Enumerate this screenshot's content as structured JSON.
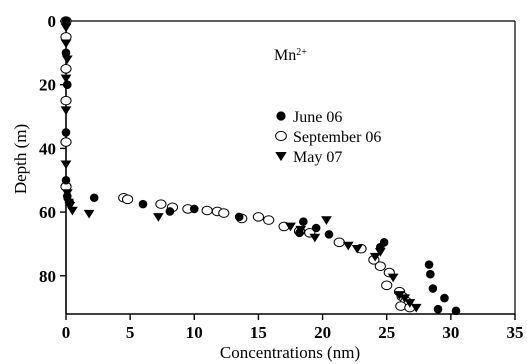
{
  "chart_data": {
    "type": "scatter",
    "title": "",
    "annotation": {
      "base": "Mn",
      "sup": "2+"
    },
    "xlabel": "Concentrations (nm)",
    "ylabel": "Depth (m)",
    "xlim": [
      0,
      35
    ],
    "ylim": [
      0,
      92
    ],
    "y_inverted": true,
    "x_axis_position": "bottom",
    "y_axis_position": "left",
    "xticks": [
      0,
      5,
      10,
      15,
      20,
      25,
      30,
      35
    ],
    "yticks": [
      0,
      20,
      40,
      60,
      80
    ],
    "grid": false,
    "legend_position": "center-right",
    "series": [
      {
        "name": "June 06",
        "marker": "filled-circle",
        "color": "#000000",
        "points": [
          [
            0.0,
            0
          ],
          [
            0.0,
            10
          ],
          [
            0.1,
            20
          ],
          [
            0.0,
            35
          ],
          [
            0.0,
            50
          ],
          [
            0.1,
            55
          ],
          [
            0.3,
            57
          ],
          [
            2.2,
            55.5
          ],
          [
            6.0,
            57.5
          ],
          [
            8.1,
            59.8
          ],
          [
            10.0,
            59
          ],
          [
            13.5,
            61.5
          ],
          [
            18.2,
            66.5
          ],
          [
            18.5,
            63
          ],
          [
            19.5,
            65
          ],
          [
            20.5,
            67
          ],
          [
            24.5,
            71
          ],
          [
            24.8,
            69.5
          ],
          [
            28.3,
            76.5
          ],
          [
            28.4,
            79.5
          ],
          [
            28.6,
            84
          ],
          [
            29.0,
            90.5
          ],
          [
            29.5,
            87
          ],
          [
            30.4,
            91
          ]
        ]
      },
      {
        "name": "September 06",
        "marker": "open-circle",
        "color": "#000000",
        "points": [
          [
            0.0,
            0
          ],
          [
            0.0,
            5
          ],
          [
            0.0,
            15
          ],
          [
            0.0,
            25
          ],
          [
            0.0,
            38
          ],
          [
            0.0,
            52
          ],
          [
            4.5,
            55.5
          ],
          [
            4.8,
            56
          ],
          [
            7.4,
            57.5
          ],
          [
            8.3,
            58.5
          ],
          [
            9.5,
            59
          ],
          [
            11.0,
            59.5
          ],
          [
            11.8,
            59.8
          ],
          [
            12.3,
            60.3
          ],
          [
            13.7,
            62
          ],
          [
            15.0,
            61.5
          ],
          [
            15.8,
            62.5
          ],
          [
            17.0,
            64.5
          ],
          [
            18.2,
            66
          ],
          [
            19.0,
            66.5
          ],
          [
            21.3,
            69.5
          ],
          [
            23.0,
            71.5
          ],
          [
            24.0,
            75
          ],
          [
            24.5,
            77
          ],
          [
            25.2,
            79
          ],
          [
            25.0,
            83
          ],
          [
            26.0,
            85
          ],
          [
            26.2,
            86.5
          ],
          [
            26.5,
            88
          ],
          [
            26.1,
            89.5
          ],
          [
            26.8,
            90
          ]
        ]
      },
      {
        "name": "May 07",
        "marker": "filled-triangle-down",
        "color": "#000000",
        "points": [
          [
            0.0,
            2
          ],
          [
            0.0,
            7
          ],
          [
            0.1,
            12
          ],
          [
            0.0,
            18
          ],
          [
            0.0,
            28
          ],
          [
            0.0,
            45
          ],
          [
            0.1,
            54
          ],
          [
            0.2,
            57
          ],
          [
            0.3,
            58
          ],
          [
            0.5,
            59.5
          ],
          [
            1.8,
            60.5
          ],
          [
            7.2,
            61.5
          ],
          [
            17.5,
            64.5
          ],
          [
            18.3,
            65.5
          ],
          [
            19.4,
            68
          ],
          [
            20.3,
            62.5
          ],
          [
            22.0,
            70.5
          ],
          [
            22.7,
            71.5
          ],
          [
            24.1,
            74
          ],
          [
            24.5,
            72.5
          ],
          [
            25.5,
            80.5
          ],
          [
            26.0,
            86
          ],
          [
            26.4,
            87
          ],
          [
            26.8,
            88.5
          ],
          [
            27.3,
            90
          ]
        ]
      }
    ]
  }
}
